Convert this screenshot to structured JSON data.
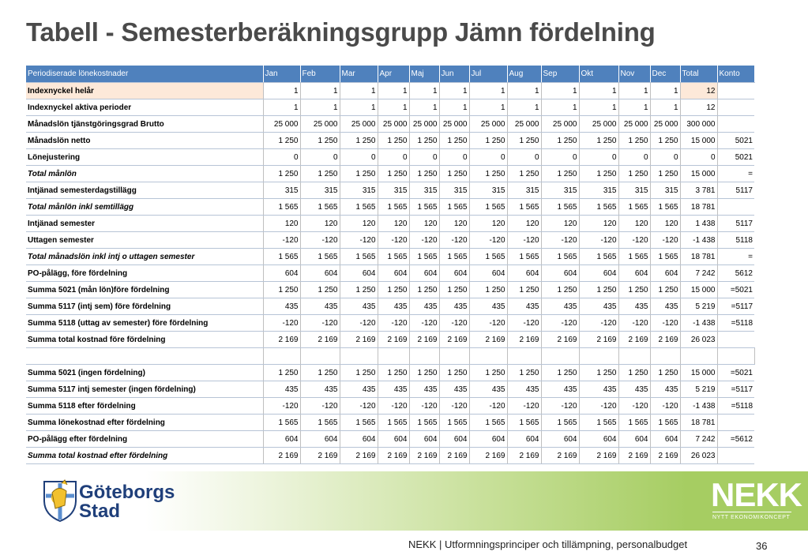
{
  "title": "Tabell - Semesterberäkningsgrupp Jämn fördelning",
  "table": {
    "headers": [
      "Periodiserade lönekostnader",
      "Jan",
      "Feb",
      "Mar",
      "Apr",
      "Maj",
      "Jun",
      "Jul",
      "Aug",
      "Sep",
      "Okt",
      "Nov",
      "Dec",
      "Total",
      "Konto"
    ],
    "rows": [
      {
        "label": "Indexnyckel helår",
        "italic": false,
        "peach": true,
        "values": [
          "1",
          "1",
          "1",
          "1",
          "1",
          "1",
          "1",
          "1",
          "1",
          "1",
          "1",
          "1"
        ],
        "total": "12",
        "konto": ""
      },
      {
        "label": "Indexnyckel aktiva perioder",
        "italic": false,
        "peach": false,
        "values": [
          "1",
          "1",
          "1",
          "1",
          "1",
          "1",
          "1",
          "1",
          "1",
          "1",
          "1",
          "1"
        ],
        "total": "12",
        "konto": ""
      },
      {
        "label": "Månadslön tjänstgöringsgrad Brutto",
        "italic": false,
        "peach": false,
        "values": [
          "25 000",
          "25 000",
          "25 000",
          "25 000",
          "25 000",
          "25 000",
          "25 000",
          "25 000",
          "25 000",
          "25 000",
          "25 000",
          "25 000"
        ],
        "total": "300 000",
        "konto": ""
      },
      {
        "label": "Månadslön netto",
        "italic": false,
        "peach": false,
        "values": [
          "1 250",
          "1 250",
          "1 250",
          "1 250",
          "1 250",
          "1 250",
          "1 250",
          "1 250",
          "1 250",
          "1 250",
          "1 250",
          "1 250"
        ],
        "total": "15 000",
        "konto": "5021"
      },
      {
        "label": "Lönejustering",
        "italic": false,
        "peach": false,
        "values": [
          "0",
          "0",
          "0",
          "0",
          "0",
          "0",
          "0",
          "0",
          "0",
          "0",
          "0",
          "0"
        ],
        "total": "0",
        "konto": "5021"
      },
      {
        "label": "Total månlön",
        "italic": true,
        "peach": false,
        "values": [
          "1 250",
          "1 250",
          "1 250",
          "1 250",
          "1 250",
          "1 250",
          "1 250",
          "1 250",
          "1 250",
          "1 250",
          "1 250",
          "1 250"
        ],
        "total": "15 000",
        "konto": "="
      },
      {
        "label": "Intjänad semesterdagstillägg",
        "italic": false,
        "peach": false,
        "values": [
          "315",
          "315",
          "315",
          "315",
          "315",
          "315",
          "315",
          "315",
          "315",
          "315",
          "315",
          "315"
        ],
        "total": "3 781",
        "konto": "5117"
      },
      {
        "label": "Total månlön inkl semtillägg",
        "italic": true,
        "peach": false,
        "values": [
          "1 565",
          "1 565",
          "1 565",
          "1 565",
          "1 565",
          "1 565",
          "1 565",
          "1 565",
          "1 565",
          "1 565",
          "1 565",
          "1 565"
        ],
        "total": "18 781",
        "konto": ""
      },
      {
        "label": "Intjänad semester",
        "italic": false,
        "peach": false,
        "values": [
          "120",
          "120",
          "120",
          "120",
          "120",
          "120",
          "120",
          "120",
          "120",
          "120",
          "120",
          "120"
        ],
        "total": "1 438",
        "konto": "5117"
      },
      {
        "label": "Uttagen semester",
        "italic": false,
        "peach": false,
        "values": [
          "-120",
          "-120",
          "-120",
          "-120",
          "-120",
          "-120",
          "-120",
          "-120",
          "-120",
          "-120",
          "-120",
          "-120"
        ],
        "total": "-1 438",
        "konto": "5118"
      },
      {
        "label": "Total månadslön inkl intj o uttagen semester",
        "italic": true,
        "peach": false,
        "values": [
          "1 565",
          "1 565",
          "1 565",
          "1 565",
          "1 565",
          "1 565",
          "1 565",
          "1 565",
          "1 565",
          "1 565",
          "1 565",
          "1 565"
        ],
        "total": "18 781",
        "konto": "="
      },
      {
        "label": "PO-pålägg, före fördelning",
        "italic": false,
        "peach": false,
        "values": [
          "604",
          "604",
          "604",
          "604",
          "604",
          "604",
          "604",
          "604",
          "604",
          "604",
          "604",
          "604"
        ],
        "total": "7 242",
        "konto": "5612"
      },
      {
        "label": "Summa 5021 (mån lön)före fördelning",
        "italic": false,
        "peach": false,
        "values": [
          "1 250",
          "1 250",
          "1 250",
          "1 250",
          "1 250",
          "1 250",
          "1 250",
          "1 250",
          "1 250",
          "1 250",
          "1 250",
          "1 250"
        ],
        "total": "15 000",
        "konto": "=5021"
      },
      {
        "label": "Summa 5117 (intj sem) före fördelning",
        "italic": false,
        "peach": false,
        "values": [
          "435",
          "435",
          "435",
          "435",
          "435",
          "435",
          "435",
          "435",
          "435",
          "435",
          "435",
          "435"
        ],
        "total": "5 219",
        "konto": "=5117"
      },
      {
        "label": "Summa 5118 (uttag av semester) före fördelning",
        "italic": false,
        "peach": false,
        "values": [
          "-120",
          "-120",
          "-120",
          "-120",
          "-120",
          "-120",
          "-120",
          "-120",
          "-120",
          "-120",
          "-120",
          "-120"
        ],
        "total": "-1 438",
        "konto": "=5118"
      },
      {
        "label": "Summa total kostnad före fördelning",
        "italic": false,
        "peach": false,
        "values": [
          "2 169",
          "2 169",
          "2 169",
          "2 169",
          "2 169",
          "2 169",
          "2 169",
          "2 169",
          "2 169",
          "2 169",
          "2 169",
          "2 169"
        ],
        "total": "26 023",
        "konto": ""
      },
      {
        "label": "",
        "italic": false,
        "peach": false,
        "blank": true,
        "values": [
          "",
          "",
          "",
          "",
          "",
          "",
          "",
          "",
          "",
          "",
          "",
          ""
        ],
        "total": "",
        "konto": ""
      },
      {
        "label": "Summa 5021  (ingen fördelning)",
        "italic": false,
        "peach": false,
        "values": [
          "1 250",
          "1 250",
          "1 250",
          "1 250",
          "1 250",
          "1 250",
          "1 250",
          "1 250",
          "1 250",
          "1 250",
          "1 250",
          "1 250"
        ],
        "total": "15 000",
        "konto": "=5021"
      },
      {
        "label": "Summa 5117 intj semester (ingen fördelning)",
        "italic": false,
        "peach": false,
        "values": [
          "435",
          "435",
          "435",
          "435",
          "435",
          "435",
          "435",
          "435",
          "435",
          "435",
          "435",
          "435"
        ],
        "total": "5 219",
        "konto": "=5117"
      },
      {
        "label": "Summa 5118 efter fördelning",
        "italic": false,
        "peach": false,
        "values": [
          "-120",
          "-120",
          "-120",
          "-120",
          "-120",
          "-120",
          "-120",
          "-120",
          "-120",
          "-120",
          "-120",
          "-120"
        ],
        "total": "-1 438",
        "konto": "=5118"
      },
      {
        "label": "Summa lönekostnad efter fördelning",
        "italic": false,
        "peach": false,
        "values": [
          "1 565",
          "1 565",
          "1 565",
          "1 565",
          "1 565",
          "1 565",
          "1 565",
          "1 565",
          "1 565",
          "1 565",
          "1 565",
          "1 565"
        ],
        "total": "18 781",
        "konto": ""
      },
      {
        "label": "PO-pålägg efter fördelning",
        "italic": false,
        "peach": false,
        "values": [
          "604",
          "604",
          "604",
          "604",
          "604",
          "604",
          "604",
          "604",
          "604",
          "604",
          "604",
          "604"
        ],
        "total": "7 242",
        "konto": "=5612"
      },
      {
        "label": "Summa total kostnad efter fördelning",
        "italic": true,
        "peach": false,
        "values": [
          "2 169",
          "2 169",
          "2 169",
          "2 169",
          "2 169",
          "2 169",
          "2 169",
          "2 169",
          "2 169",
          "2 169",
          "2 169",
          "2 169"
        ],
        "total": "26 023",
        "konto": ""
      }
    ]
  },
  "logo_left": {
    "line1": "Göteborgs",
    "line2": "Stad",
    "icon": "goteborg-lion-crest-icon"
  },
  "logo_right": {
    "word": "NEKK",
    "subtitle": "NYTT EKONOMIKONCEPT"
  },
  "footer": {
    "text": "NEKK | Utformningsprinciper och tillämpning, personalbudget",
    "page": "36"
  },
  "colors": {
    "header_blue": "#4f81bd",
    "peach": "#fde9d9",
    "green": "#a6cd62",
    "title_gray": "#4a4a4a",
    "logo_blue": "#1f3f7a"
  }
}
